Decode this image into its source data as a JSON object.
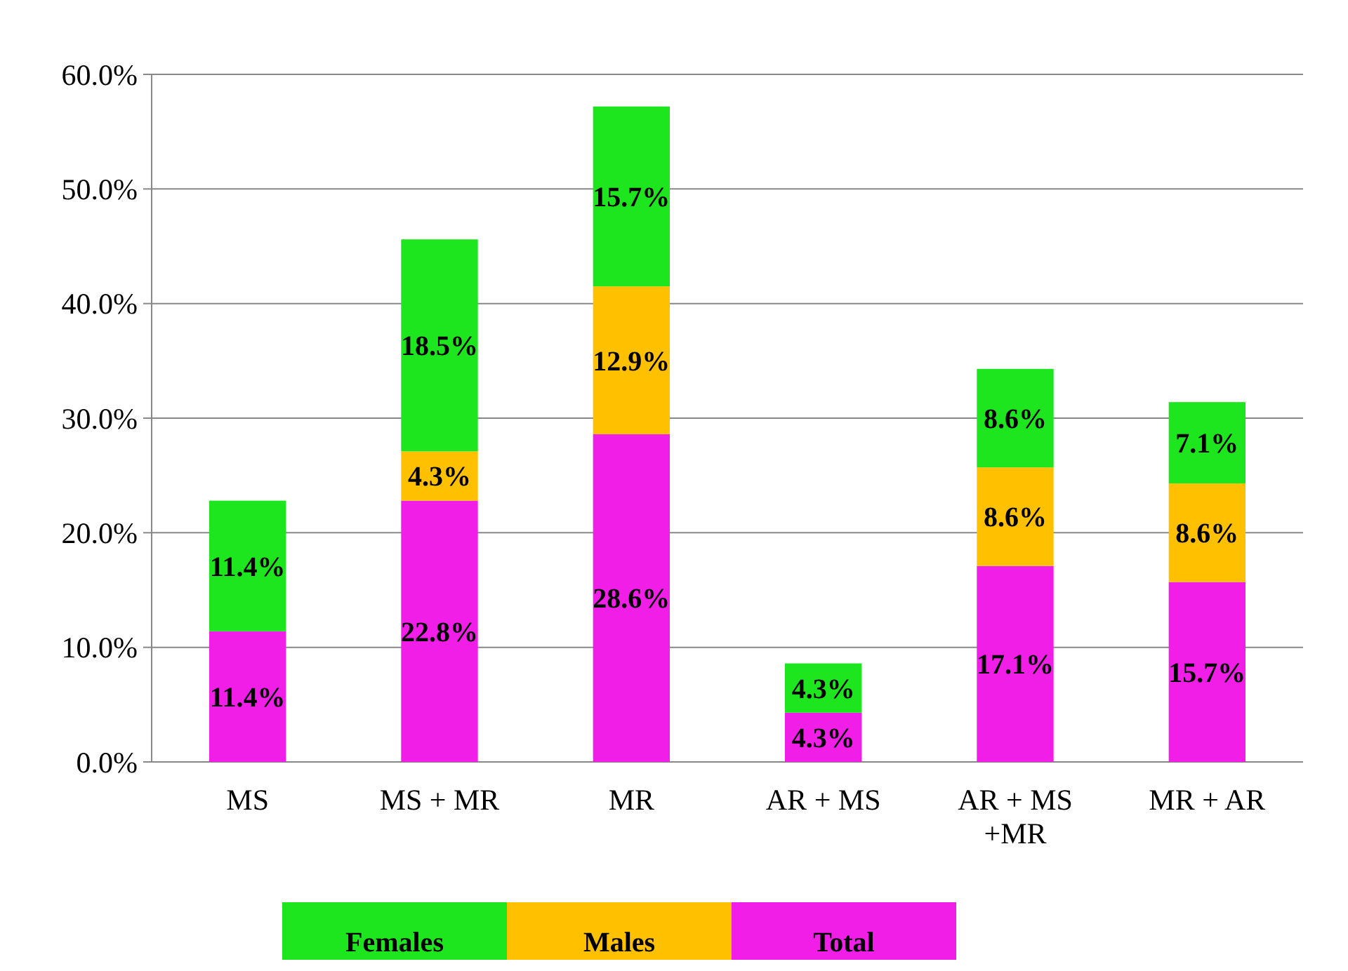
{
  "chart_data": {
    "type": "bar",
    "stacked": true,
    "categories": [
      "MS",
      "MS + MR",
      "MR",
      "AR + MS",
      "AR + MS +MR",
      "MR + AR"
    ],
    "series": [
      {
        "name": "Total",
        "color": "#f01ee6",
        "values": [
          11.4,
          22.8,
          28.6,
          4.3,
          17.1,
          15.7
        ],
        "value_labels": [
          "11.4%",
          "22.8%",
          "28.6%",
          "4.3%",
          "17.1%",
          "15.7%"
        ]
      },
      {
        "name": "Males",
        "color": "#ffc000",
        "values": [
          null,
          4.3,
          12.9,
          null,
          8.6,
          8.6
        ],
        "value_labels": [
          null,
          "4.3%",
          "12.9%",
          null,
          "8.6%",
          "8.6%"
        ]
      },
      {
        "name": "Females",
        "color": "#1ee61e",
        "values": [
          11.4,
          18.5,
          15.7,
          4.3,
          8.6,
          7.1
        ],
        "value_labels": [
          "11.4%",
          "18.5%",
          "15.7%",
          "4.3%",
          "8.6%",
          "7.1%"
        ]
      }
    ],
    "ylim": [
      0,
      60
    ],
    "yticks": [
      {
        "value": 0,
        "label": "0.0%"
      },
      {
        "value": 10,
        "label": "10.0%"
      },
      {
        "value": 20,
        "label": "20.0%"
      },
      {
        "value": 30,
        "label": "30.0%"
      },
      {
        "value": 40,
        "label": "40.0%"
      },
      {
        "value": 50,
        "label": "50.0%"
      },
      {
        "value": 60,
        "label": "60.0%"
      }
    ],
    "grid": "y",
    "legend": "bottom"
  }
}
